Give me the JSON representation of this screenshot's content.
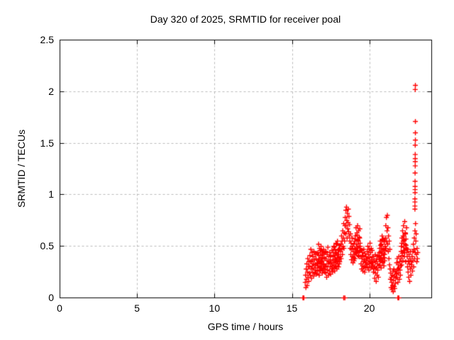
{
  "chart_data": {
    "type": "scatter",
    "title": "Day 320 of 2025, SRMTID for receiver poal",
    "xlabel": "GPS time / hours",
    "ylabel": "SRMTID / TECUs",
    "xlim": [
      0,
      24
    ],
    "ylim": [
      0,
      2.5
    ],
    "xticks": {
      "values": [
        0,
        5,
        10,
        15,
        20
      ],
      "labels": [
        "0",
        "5",
        "10",
        "15",
        "20"
      ]
    },
    "yticks": {
      "values": [
        0,
        0.5,
        1,
        1.5,
        2,
        2.5
      ],
      "labels": [
        "0",
        "0.5",
        "1",
        "1.5",
        "2",
        "2.5"
      ]
    },
    "grid": {
      "show": true,
      "color": "#b9b9b9",
      "dash": [
        3,
        3
      ]
    },
    "legend": "none",
    "series": [
      {
        "name": "SRMTID",
        "marker": "plus",
        "color": "#ff0000",
        "size": 7,
        "runs": [
          {
            "t0": 15.84,
            "dt": 0.02,
            "y": [
              0.15,
              0.22,
              0.1,
              0.28,
              0.18,
              0.33,
              0.12,
              0.25,
              0.38,
              0.2,
              0.3,
              0.16,
              0.35,
              0.24
            ]
          },
          {
            "t0": 16.12,
            "dt": 0.02,
            "y": [
              0.3,
              0.41,
              0.22,
              0.35,
              0.47,
              0.28,
              0.19,
              0.36,
              0.44,
              0.31,
              0.25,
              0.4,
              0.33,
              0.21,
              0.45,
              0.29,
              0.37,
              0.24,
              0.42,
              0.32,
              0.27,
              0.38,
              0.23,
              0.43,
              0.34
            ]
          },
          {
            "t0": 16.62,
            "dt": 0.02,
            "y": [
              0.33,
              0.26,
              0.44,
              0.31,
              0.52,
              0.37,
              0.22,
              0.48,
              0.3,
              0.41,
              0.27,
              0.35,
              0.5,
              0.29,
              0.38,
              0.45,
              0.24,
              0.36,
              0.42,
              0.28,
              0.47,
              0.32,
              0.39,
              0.25,
              0.44
            ]
          },
          {
            "t0": 16.63,
            "dt": 0.04,
            "y": [
              0.29,
              0.36,
              0.41,
              0.27,
              0.34,
              0.46,
              0.31,
              0.39,
              0.26,
              0.43,
              0.33,
              0.28
            ]
          },
          {
            "t0": 17.12,
            "dt": 0.02,
            "y": [
              0.3,
              0.38,
              0.24,
              0.45,
              0.31,
              0.2,
              0.36,
              0.42,
              0.27,
              0.49,
              0.33,
              0.22,
              0.4,
              0.35,
              0.26,
              0.44,
              0.3,
              0.37,
              0.23,
              0.41,
              0.34,
              0.28,
              0.46,
              0.31,
              0.25
            ]
          },
          {
            "t0": 17.62,
            "dt": 0.02,
            "y": [
              0.36,
              0.44,
              0.29,
              0.5,
              0.34,
              0.41,
              0.26,
              0.47,
              0.38,
              0.31,
              0.53,
              0.36,
              0.43,
              0.28,
              0.39,
              0.55,
              0.33,
              0.46,
              0.3,
              0.42,
              0.37,
              0.51,
              0.35,
              0.48,
              0.4
            ]
          },
          {
            "t0": 17.63,
            "dt": 0.04,
            "y": [
              0.4,
              0.32,
              0.49,
              0.37,
              0.44,
              0.3,
              0.52,
              0.35,
              0.42,
              0.47,
              0.33,
              0.38
            ]
          },
          {
            "t0": 18.12,
            "dt": 0.02,
            "y": [
              0.45,
              0.52,
              0.38,
              0.6,
              0.47,
              0.55,
              0.42,
              0.65,
              0.5,
              0.58,
              0.72,
              0.48,
              0.63,
              0.55,
              0.7
            ]
          },
          {
            "t0": 18.42,
            "dt": 0.02,
            "y": [
              0.78,
              0.62,
              0.85,
              0.7,
              0.88,
              0.75,
              0.58,
              0.82,
              0.67,
              0.73,
              0.86,
              0.64,
              0.79,
              0.6,
              0.71
            ]
          },
          {
            "t0": 18.72,
            "dt": 0.02,
            "y": [
              0.55,
              0.48,
              0.62,
              0.42,
              0.53,
              0.37,
              0.47,
              0.58,
              0.4,
              0.5,
              0.34,
              0.45,
              0.39,
              0.52,
              0.36
            ]
          },
          {
            "t0": 19.02,
            "dt": 0.02,
            "y": [
              0.42,
              0.55,
              0.38,
              0.6,
              0.47,
              0.68,
              0.52,
              0.44,
              0.63,
              0.49,
              0.7,
              0.56,
              0.41,
              0.65,
              0.5,
              0.59,
              0.45,
              0.67,
              0.53,
              0.48
            ]
          },
          {
            "t0": 19.03,
            "dt": 0.04,
            "y": [
              0.48,
              0.57,
              0.43,
              0.52,
              0.61,
              0.46,
              0.55,
              0.4,
              0.58,
              0.5
            ]
          },
          {
            "t0": 19.42,
            "dt": 0.02,
            "y": [
              0.4,
              0.33,
              0.46,
              0.28,
              0.38,
              0.44,
              0.31,
              0.26,
              0.41,
              0.35,
              0.47,
              0.3,
              0.37,
              0.25,
              0.43,
              0.34,
              0.29,
              0.4,
              0.32,
              0.36
            ]
          },
          {
            "t0": 19.82,
            "dt": 0.02,
            "y": [
              0.38,
              0.45,
              0.3,
              0.5,
              0.36,
              0.42,
              0.27,
              0.47,
              0.33,
              0.39,
              0.53,
              0.35,
              0.44,
              0.29,
              0.48,
              0.37,
              0.31,
              0.46,
              0.4,
              0.34
            ]
          },
          {
            "t0": 20.22,
            "dt": 0.02,
            "y": [
              0.32,
              0.25,
              0.4,
              0.28,
              0.36,
              0.19,
              0.3,
              0.42,
              0.24,
              0.35,
              0.16,
              0.29,
              0.38,
              0.22,
              0.33,
              0.27,
              0.41,
              0.2,
              0.31,
              0.37
            ]
          },
          {
            "t0": 20.62,
            "dt": 0.02,
            "y": [
              0.4,
              0.48,
              0.32,
              0.55,
              0.38,
              0.45,
              0.29,
              0.52,
              0.36,
              0.6,
              0.43,
              0.34,
              0.57,
              0.39,
              0.47,
              0.31,
              0.54,
              0.42,
              0.36,
              0.5
            ]
          },
          {
            "t0": 20.63,
            "dt": 0.04,
            "y": [
              0.44,
              0.37,
              0.51,
              0.41,
              0.48,
              0.35,
              0.56,
              0.43,
              0.39,
              0.46
            ]
          },
          {
            "t0": 21.02,
            "dt": 0.02,
            "y": [
              0.58,
              0.7,
              0.48,
              0.78,
              0.55,
              0.65,
              0.8,
              0.52,
              0.68,
              0.45,
              0.6,
              0.38,
              0.55,
              0.32,
              0.47
            ]
          },
          {
            "t0": 21.32,
            "dt": 0.02,
            "y": [
              0.28,
              0.18,
              0.24,
              0.1,
              0.2,
              0.15,
              0.08,
              0.22,
              0.12,
              0.26,
              0.06,
              0.17,
              0.28,
              0.11,
              0.21,
              0.09,
              0.25,
              0.14,
              0.19,
              0.23
            ]
          },
          {
            "t0": 21.72,
            "dt": 0.02,
            "y": [
              0.26,
              0.34,
              0.2,
              0.38,
              0.28,
              0.15,
              0.32,
              0.24,
              0.4,
              0.29,
              0.18,
              0.35,
              0.27,
              0.22,
              0.31
            ]
          },
          {
            "t0": 22.02,
            "dt": 0.02,
            "y": [
              0.38,
              0.5,
              0.32,
              0.58,
              0.43,
              0.65,
              0.36,
              0.55,
              0.7,
              0.46,
              0.6,
              0.4,
              0.74,
              0.52,
              0.63,
              0.35,
              0.57,
              0.48,
              0.68,
              0.44
            ]
          },
          {
            "t0": 22.03,
            "dt": 0.04,
            "y": [
              0.45,
              0.53,
              0.41,
              0.6,
              0.49,
              0.56,
              0.44,
              0.62,
              0.51,
              0.47
            ]
          },
          {
            "t0": 22.42,
            "dt": 0.02,
            "y": [
              0.4,
              0.3,
              0.47,
              0.25,
              0.36,
              0.2,
              0.42,
              0.33,
              0.16,
              0.38,
              0.28,
              0.45,
              0.22,
              0.35,
              0.3
            ]
          },
          {
            "t0": 22.72,
            "dt": 0.02,
            "y": [
              0.32,
              0.4,
              0.26,
              0.45,
              0.36,
              0.52,
              0.3,
              0.47,
              0.58,
              0.38,
              0.65,
              0.44,
              0.72,
              0.55,
              0.62
            ]
          },
          {
            "t0": 23.02,
            "dt": 0.02,
            "y": [
              0.42,
              0.35,
              0.48,
              0.38,
              0.44
            ]
          }
        ],
        "points": [
          [
            22.92,
            0.86
          ],
          [
            22.92,
            0.89
          ],
          [
            22.92,
            0.93
          ],
          [
            22.92,
            0.96
          ],
          [
            22.93,
            1.02
          ],
          [
            22.93,
            1.05
          ],
          [
            22.93,
            1.08
          ],
          [
            22.93,
            1.13
          ],
          [
            22.93,
            1.21
          ],
          [
            22.94,
            1.28
          ],
          [
            22.94,
            1.32
          ],
          [
            22.94,
            1.35
          ],
          [
            22.94,
            1.39
          ],
          [
            22.94,
            1.48
          ],
          [
            22.95,
            1.53
          ],
          [
            22.95,
            1.6
          ],
          [
            22.95,
            1.71
          ],
          [
            22.94,
            2.02
          ],
          [
            22.95,
            2.06
          ],
          [
            15.69,
            0
          ],
          [
            15.71,
            0
          ],
          [
            15.73,
            0
          ],
          [
            15.75,
            0
          ],
          [
            18.32,
            0
          ],
          [
            18.4,
            0
          ],
          [
            21.82,
            0
          ],
          [
            21.84,
            0
          ],
          [
            21.86,
            0
          ],
          [
            21.88,
            0
          ]
        ]
      }
    ]
  }
}
